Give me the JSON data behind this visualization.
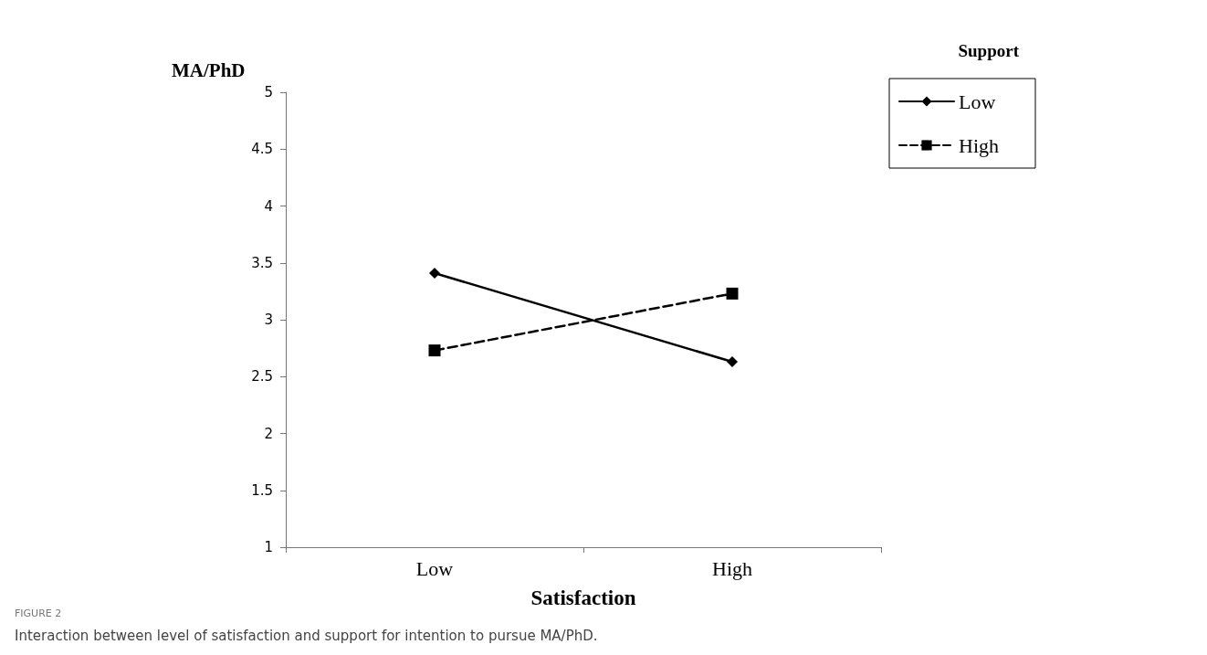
{
  "chart_data": {
    "type": "line",
    "ylabel": "MA/PhD",
    "xlabel": "Satisfaction",
    "legend_title": "Support",
    "categories": [
      "Low",
      "High"
    ],
    "series": [
      {
        "name": "Low",
        "color": "#000000",
        "values": [
          3.41,
          2.63
        ],
        "marker": "diamond",
        "line_style": "solid"
      },
      {
        "name": "High",
        "color": "#000000",
        "values": [
          2.73,
          3.23
        ],
        "marker": "square",
        "line_style": "dashed"
      }
    ],
    "ylim": [
      1,
      5
    ],
    "yticks": [
      1,
      1.5,
      2,
      2.5,
      3,
      3.5,
      4,
      4.5,
      5
    ],
    "grid": false,
    "legend": "top right",
    "annotations": [
      "FIGURE 2",
      "Interaction between level of satisfaction and support for intention to pursue MA/PhD."
    ]
  }
}
